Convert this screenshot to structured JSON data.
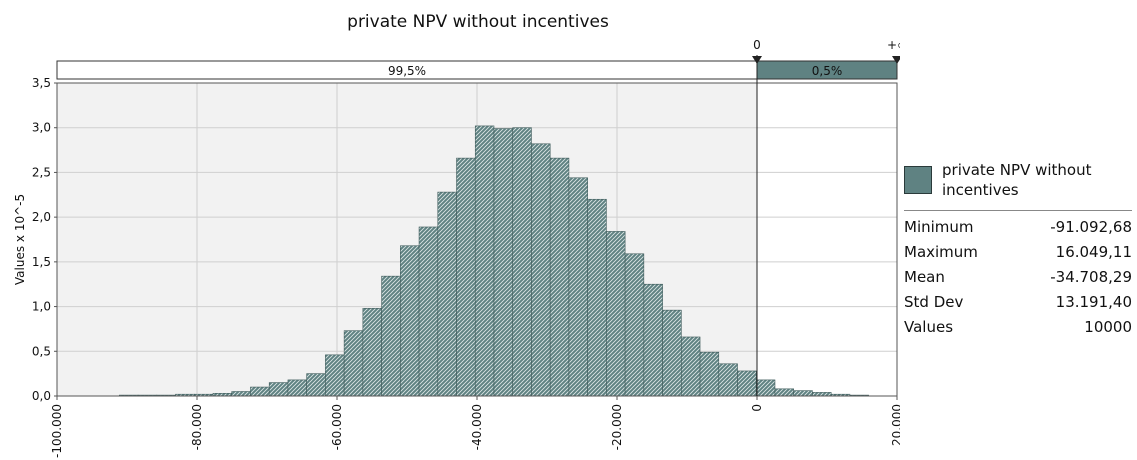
{
  "chart_data": {
    "type": "bar",
    "title": "private NPV without incentives",
    "ylabel": "Values x 10^-5",
    "xlabel": "",
    "xlim": [
      -100000,
      20000
    ],
    "ylim": [
      0,
      3.5
    ],
    "x_ticks": [
      -100000,
      -80000,
      -60000,
      -40000,
      -20000,
      0,
      20000
    ],
    "x_tick_labels": [
      "-100.000",
      "-80.000",
      "-60.000",
      "-40.000",
      "-20.000",
      "0",
      "20.000"
    ],
    "y_ticks": [
      0,
      0.5,
      1.0,
      1.5,
      2.0,
      2.5,
      3.0,
      3.5
    ],
    "y_tick_labels": [
      "0,0",
      "0,5",
      "1,0",
      "1,5",
      "2,0",
      "2,5",
      "3,0",
      "3,5"
    ],
    "grid": true,
    "bin_width": 2676,
    "bin_starts": [
      -91093,
      -88417,
      -85741,
      -83065,
      -80389,
      -77713,
      -75037,
      -72361,
      -69685,
      -67009,
      -64333,
      -61657,
      -58981,
      -56305,
      -53629,
      -50953,
      -48277,
      -45601,
      -42925,
      -40249,
      -37573,
      -34897,
      -32221,
      -29545,
      -26869,
      -24193,
      -21517,
      -18841,
      -16165,
      -13489,
      -10813,
      -8137,
      -5461,
      -2785,
      -109,
      2567,
      5243,
      7919,
      10595,
      13271
    ],
    "values": [
      0.01,
      0.01,
      0.01,
      0.02,
      0.02,
      0.03,
      0.05,
      0.1,
      0.15,
      0.18,
      0.25,
      0.46,
      0.73,
      0.98,
      1.34,
      1.68,
      1.89,
      2.28,
      2.66,
      3.02,
      2.99,
      3.0,
      2.82,
      2.66,
      2.44,
      2.2,
      1.84,
      1.59,
      1.25,
      0.96,
      0.66,
      0.49,
      0.36,
      0.28,
      0.18,
      0.08,
      0.06,
      0.04,
      0.02,
      0.01
    ],
    "marker_lines": [
      0
    ],
    "delimiter_labels": [
      "0",
      "+∞"
    ],
    "regions": [
      {
        "label": "99,5%",
        "from": -100000,
        "to": 0
      },
      {
        "label": "0,5%",
        "from": 0,
        "to": 20000
      }
    ],
    "legend": {
      "name": "private NPV without incentives",
      "placement": "right"
    },
    "stats": [
      {
        "label": "Minimum",
        "value": "-91.092,68"
      },
      {
        "label": "Maximum",
        "value": "16.049,11"
      },
      {
        "label": "Mean",
        "value": "-34.708,29"
      },
      {
        "label": "Std Dev",
        "value": "13.191,40"
      },
      {
        "label": "Values",
        "value": "10000"
      }
    ],
    "colors": {
      "bar_fill": "#5f8282",
      "bar_stroke": "#3e5a5a",
      "bar_hatch": "#dfe8e8",
      "plot_bg_left": "#f2f2f2",
      "plot_bg_right": "#ffffff",
      "grid": "#cfcfcf",
      "region_right_fill": "#5f8282"
    }
  }
}
